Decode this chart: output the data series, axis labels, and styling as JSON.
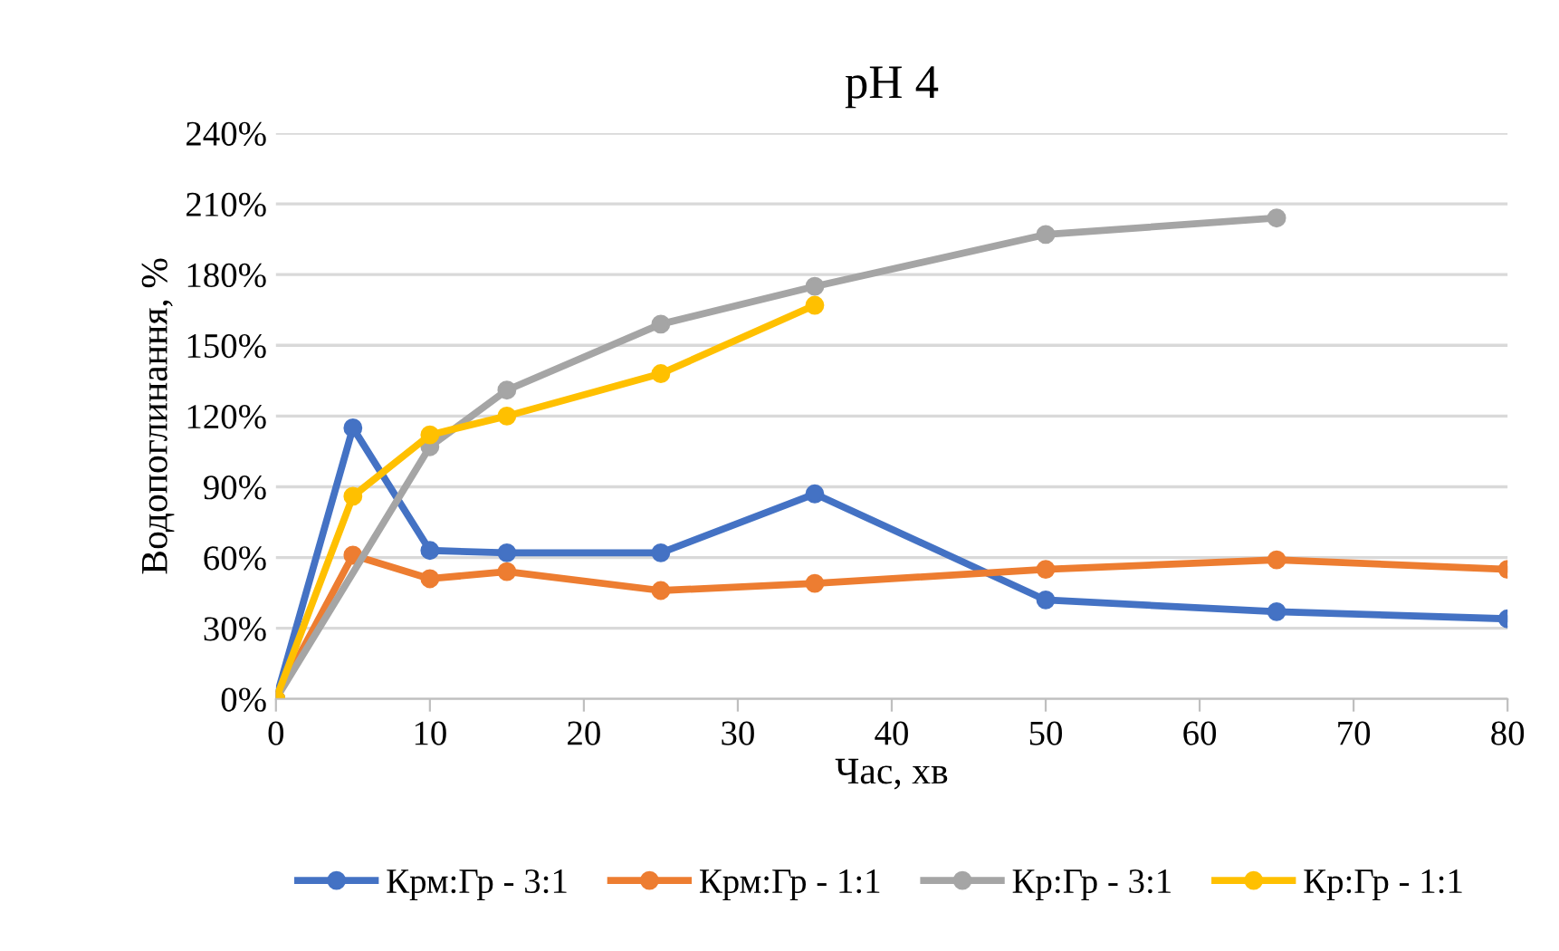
{
  "chart_data": {
    "type": "line",
    "title": "pH 4",
    "xlabel": "Час, хв",
    "ylabel": "Водопоглинання, %",
    "x": [
      0,
      5,
      10,
      15,
      25,
      35,
      50,
      65,
      80
    ],
    "series": [
      {
        "name": "Крм:Гр - 3:1",
        "color": "#4472c4",
        "values": [
          0,
          115,
          63,
          62,
          62,
          87,
          42,
          37,
          34
        ]
      },
      {
        "name": "Крм:Гр - 1:1",
        "color": "#ed7d31",
        "values": [
          0,
          61,
          51,
          54,
          46,
          49,
          55,
          59,
          55
        ]
      },
      {
        "name": "Кр:Гр - 3:1",
        "color": "#a5a5a5",
        "values": [
          0,
          null,
          107,
          131,
          159,
          175,
          197,
          204,
          null
        ]
      },
      {
        "name": "Кр:Гр - 1:1",
        "color": "#ffc000",
        "values": [
          0,
          86,
          112,
          120,
          138,
          167,
          null,
          null,
          null
        ]
      }
    ],
    "xlim": [
      0,
      80
    ],
    "xticks": [
      0,
      10,
      20,
      30,
      40,
      50,
      60,
      70,
      80
    ],
    "ylim": [
      0,
      240
    ],
    "yticks": [
      {
        "value": 0,
        "label": "0%"
      },
      {
        "value": 30,
        "label": "30%"
      },
      {
        "value": 60,
        "label": "60%"
      },
      {
        "value": 90,
        "label": "90%"
      },
      {
        "value": 120,
        "label": "120%"
      },
      {
        "value": 150,
        "label": "150%"
      },
      {
        "value": 180,
        "label": "180%"
      },
      {
        "value": 210,
        "label": "210%"
      },
      {
        "value": 240,
        "label": "240%"
      }
    ],
    "grid": "y",
    "legend": "bottom",
    "marker": "circle",
    "line_style": "solid"
  }
}
